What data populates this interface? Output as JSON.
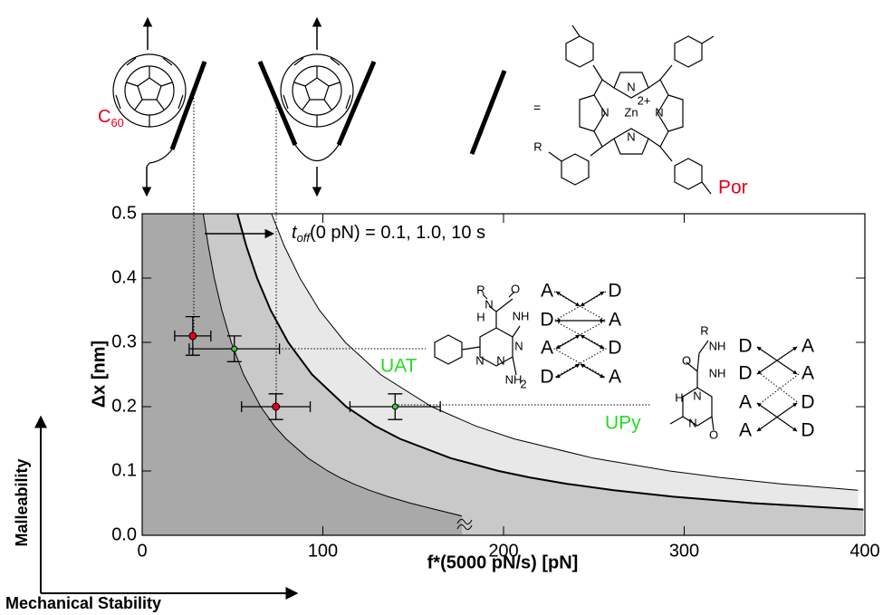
{
  "chart_data": {
    "type": "scatter",
    "xlabel": "f*(5000 pN/s)  [pN]",
    "ylabel": "Δx [nm]",
    "xlim": [
      0,
      400
    ],
    "ylim": [
      0,
      0.5
    ],
    "xticks": [
      0,
      100,
      200,
      300,
      400
    ],
    "yticks": [
      {
        "value": 0,
        "label": "0.0"
      },
      0.1,
      0.2,
      0.3,
      0.4,
      0.5
    ],
    "curves": [
      {
        "x": [
          71.6,
          78.6,
          87.3,
          98.1,
          112.4,
          131.9,
          160.2,
          184.6,
          205.8,
          249.6,
          291.9,
          319.6,
          353.5,
          396.2
        ],
        "y": [
          0.5,
          0.45,
          0.4,
          0.35,
          0.3,
          0.25,
          0.2,
          0.17,
          0.15,
          0.12,
          0.1,
          0.09,
          0.08,
          0.07
        ],
        "color": "#000000",
        "fill": "#e8e8e8"
      },
      {
        "x": [
          52.7,
          57.6,
          63.6,
          71.1,
          80.8,
          94.0,
          112.9,
          128.9,
          142.7,
          170.7,
          197.3,
          214.4,
          235.2,
          261.0,
          293.9,
          337.7,
          399.2
        ],
        "y": [
          0.5,
          0.45,
          0.4,
          0.35,
          0.3,
          0.25,
          0.2,
          0.17,
          0.15,
          0.12,
          0.1,
          0.09,
          0.08,
          0.07,
          0.06,
          0.05,
          0.04
        ],
        "color": "#000000",
        "fill": "#c9c9c9"
      },
      {
        "x": [
          33.8,
          36.6,
          39.9,
          44.1,
          49.3,
          56.1,
          65.6,
          73.2,
          79.6,
          91.8,
          102.7,
          109.2,
          116.9,
          125.8,
          136.2,
          148.4,
          162.6,
          177
        ],
        "y": [
          0.5,
          0.45,
          0.4,
          0.35,
          0.3,
          0.25,
          0.2,
          0.17,
          0.15,
          0.12,
          0.1,
          0.09,
          0.08,
          0.07,
          0.06,
          0.05,
          0.04,
          0.03
        ],
        "color": "#000000",
        "fill": "#a9a9a9"
      }
    ],
    "points": [
      {
        "x": 28,
        "y": 0.31,
        "xerr": 10,
        "yerr": 0.03,
        "color": "#e3001b"
      },
      {
        "x": 51,
        "y": 0.29,
        "xerr": 25,
        "yerr": 0.02,
        "color": "#3fcf3f"
      },
      {
        "x": 74,
        "y": 0.2,
        "xerr": 19,
        "yerr": 0.02,
        "color": "#e3001b"
      },
      {
        "x": 140,
        "y": 0.2,
        "xerr": 25,
        "yerr": 0.02,
        "color": "#3fcf3f"
      }
    ],
    "annotation": {
      "t": "t",
      "sub": "off",
      "rest": "(0 pN) = 0.1, 1.0, 10 s"
    }
  },
  "c60": {
    "text": "C",
    "sub": "60"
  },
  "porphyrin": {
    "equals": "=",
    "atoms": [
      "N",
      "N",
      "N",
      "N",
      "Zn",
      "2+",
      "R"
    ],
    "label": "Por"
  },
  "uat": {
    "label": "UAT",
    "atoms": [
      "R",
      "N",
      "H",
      "O",
      "NH",
      "N",
      "N",
      "N",
      "NH",
      "2"
    ],
    "array": [
      [
        "A",
        "D"
      ],
      [
        "D",
        "A"
      ],
      [
        "A",
        "D"
      ],
      [
        "D",
        "A"
      ]
    ]
  },
  "upy": {
    "label": "UPy",
    "atoms": [
      "R",
      "NH",
      "O",
      "NH",
      "H",
      "N",
      "N",
      "O"
    ],
    "array": [
      [
        "D",
        "A"
      ],
      [
        "D",
        "A"
      ],
      [
        "A",
        "D"
      ],
      [
        "A",
        "D"
      ]
    ]
  },
  "axes_arrows": {
    "y": "Malleability",
    "x": "Mechanical Stability"
  }
}
